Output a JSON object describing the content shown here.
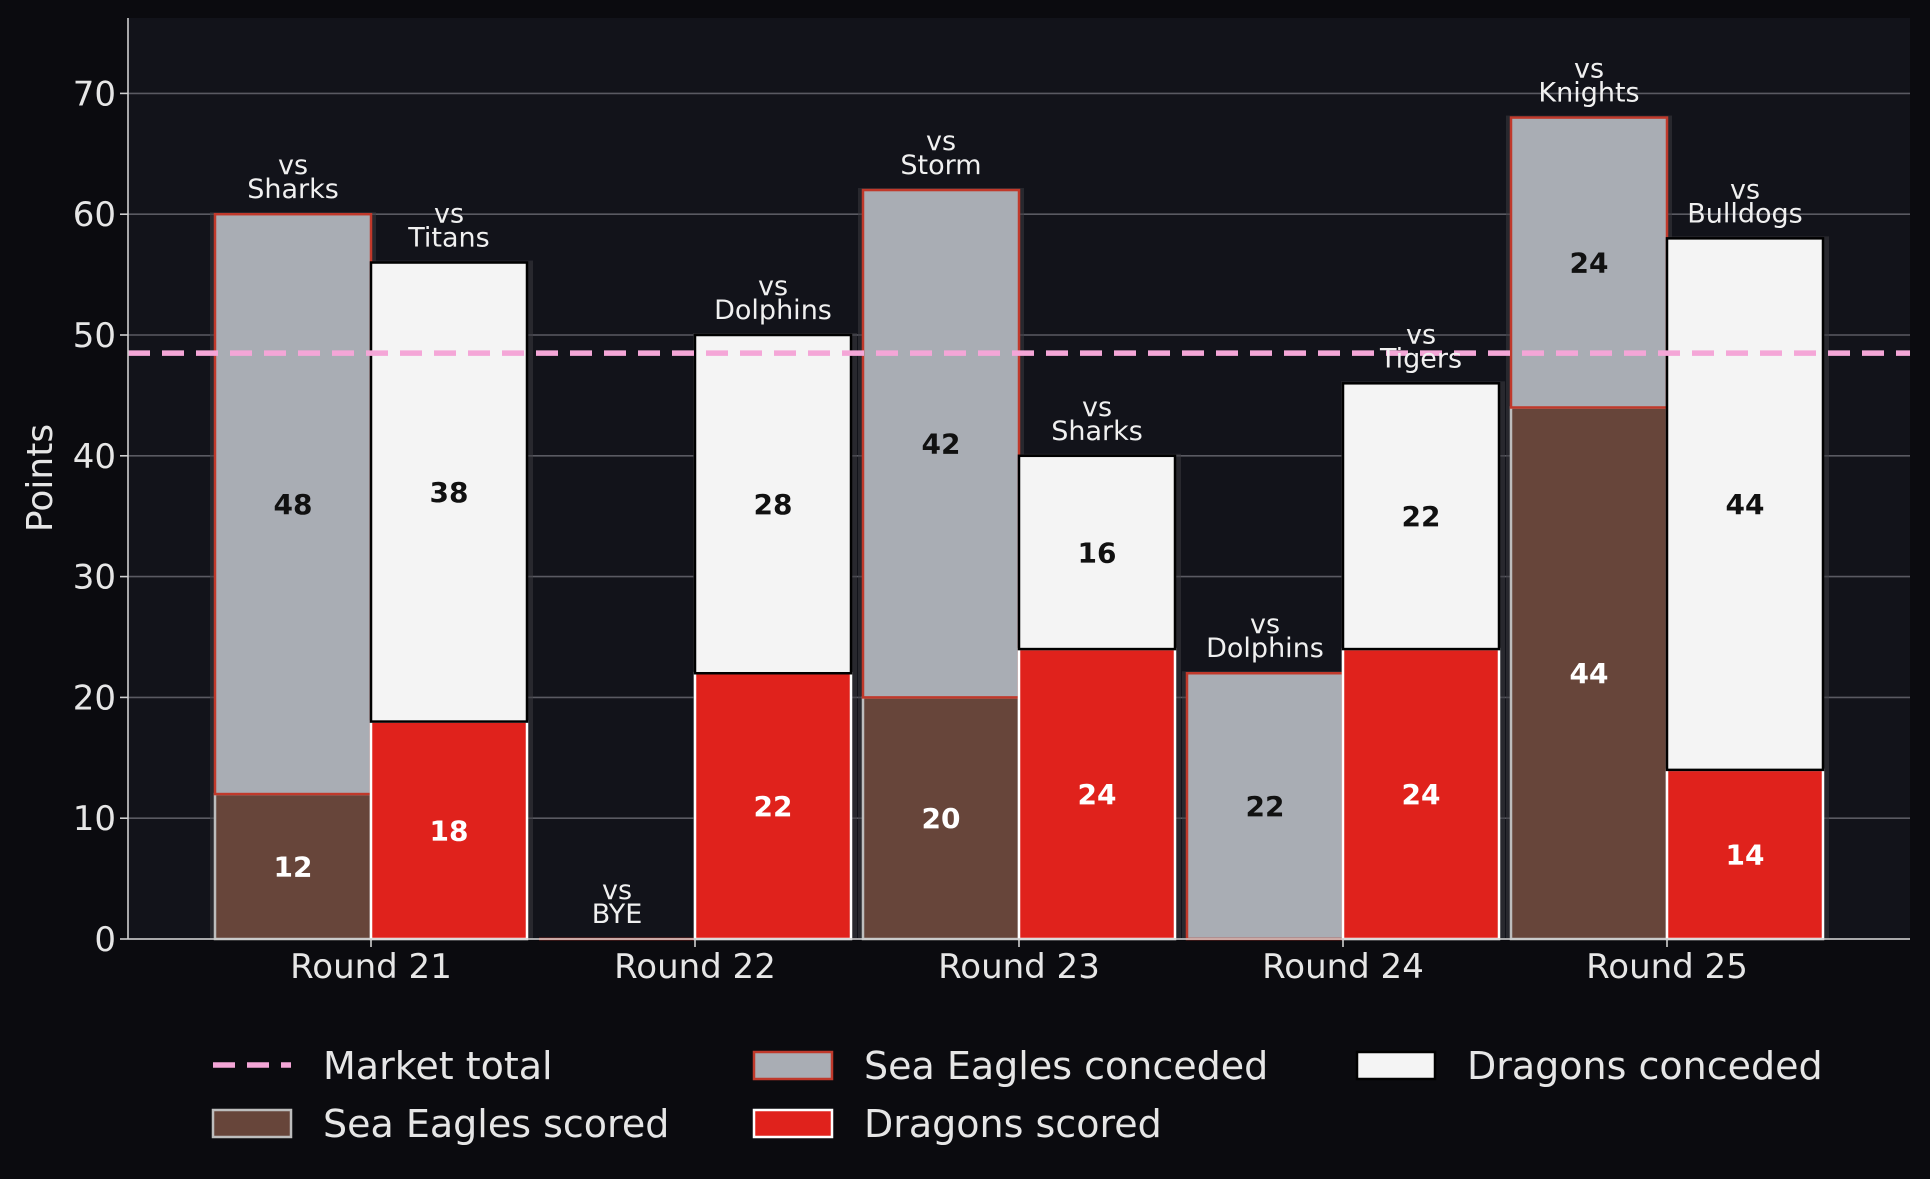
{
  "chart_data": {
    "type": "bar",
    "stacked": true,
    "grouped": true,
    "categories": [
      "Round 21",
      "Round 22",
      "Round 23",
      "Round 24",
      "Round 25"
    ],
    "ylabel": "Points",
    "ylim": [
      0,
      76
    ],
    "yticks": [
      0,
      10,
      20,
      30,
      40,
      50,
      60,
      70
    ],
    "grid": "horizontal",
    "legend_position": "bottom",
    "reference_line": {
      "name": "Market total",
      "value": 48.5,
      "color": "#f4a6d7",
      "style": "dashed"
    },
    "series": [
      {
        "name": "Sea Eagles scored",
        "team": "Sea Eagles",
        "kind": "scored",
        "values": [
          12,
          0,
          20,
          0,
          44
        ],
        "color": "#67453a",
        "edge": "#bdbdbd",
        "label_color": "#ffffff"
      },
      {
        "name": "Sea Eagles conceded",
        "team": "Sea Eagles",
        "kind": "conceded",
        "values": [
          48,
          0,
          42,
          22,
          24
        ],
        "color": "#a9adb4",
        "edge": "#c0392b",
        "label_color": "#111111"
      },
      {
        "name": "Dragons scored",
        "team": "Dragons",
        "kind": "scored",
        "values": [
          18,
          22,
          24,
          24,
          14
        ],
        "color": "#e0221c",
        "edge": "#ffffff",
        "label_color": "#ffffff"
      },
      {
        "name": "Dragons conceded",
        "team": "Dragons",
        "kind": "conceded",
        "values": [
          38,
          28,
          16,
          22,
          44
        ],
        "color": "#f4f4f4",
        "edge": "#000000",
        "label_color": "#111111"
      }
    ],
    "opponents": {
      "Sea Eagles": [
        "Sharks",
        "BYE",
        "Storm",
        "Dolphins",
        "Knights"
      ],
      "Dragons": [
        "Titans",
        "Dolphins",
        "Sharks",
        "Tigers",
        "Bulldogs"
      ]
    },
    "opponent_prefix": "vs"
  },
  "legend": [
    {
      "label": "Market total",
      "swatch": "line",
      "color": "#f4a6d7"
    },
    {
      "label": "Sea Eagles scored",
      "swatch": "box",
      "color": "#67453a",
      "edge": "#bdbdbd"
    },
    {
      "label": "Sea Eagles conceded",
      "swatch": "box",
      "color": "#a9adb4",
      "edge": "#c0392b"
    },
    {
      "label": "Dragons scored",
      "swatch": "box",
      "color": "#e0221c",
      "edge": "#ffffff"
    },
    {
      "label": "Dragons conceded",
      "swatch": "box",
      "color": "#f4f4f4",
      "edge": "#000000"
    }
  ]
}
